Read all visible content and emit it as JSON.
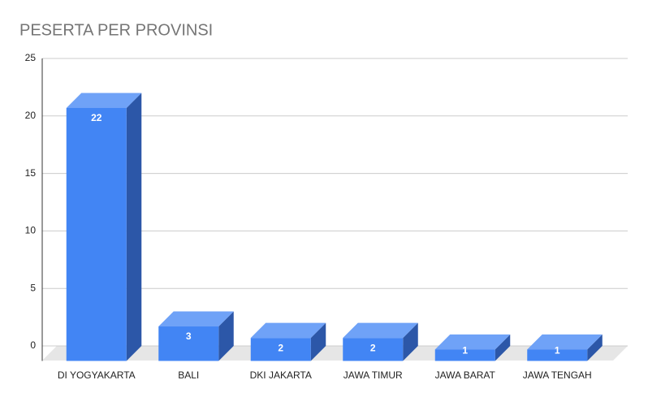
{
  "chart_data": {
    "type": "bar3d",
    "title": "PESERTA PER PROVINSI",
    "categories": [
      "DI YOGYAKARTA",
      "BALI",
      "DKI JAKARTA",
      "JAWA TIMUR",
      "JAWA BARAT",
      "JAWA TENGAH"
    ],
    "values": [
      22,
      3,
      2,
      2,
      1,
      1
    ],
    "color": "#4285f4",
    "ylim": [
      0,
      25
    ],
    "yticks": [
      0,
      5,
      10,
      15,
      20,
      25
    ],
    "grid": true
  }
}
